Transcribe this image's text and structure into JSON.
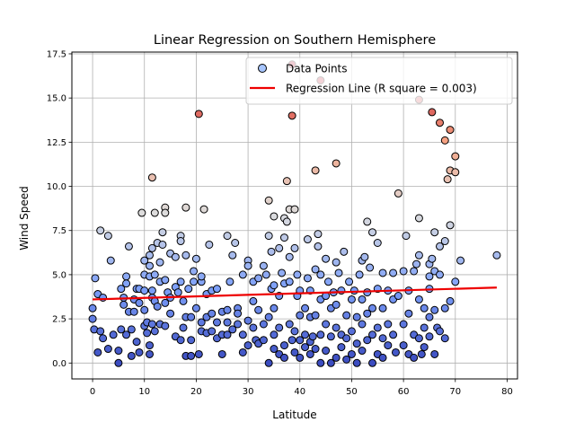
{
  "chart_data": {
    "type": "scatter",
    "title": "Linear Regression on Southern Hemisphere",
    "xlabel": "Latitude",
    "ylabel": "Wind Speed",
    "xlim": [
      -4,
      82
    ],
    "ylim": [
      -0.9,
      17.6
    ],
    "xticks": [
      "0",
      "10",
      "20",
      "30",
      "40",
      "50",
      "60",
      "70",
      "80"
    ],
    "yticks": [
      "0.0",
      "2.5",
      "5.0",
      "7.5",
      "10.0",
      "12.5",
      "15.0",
      "17.5"
    ],
    "grid": true,
    "legend": {
      "placement": "top-right",
      "entries": [
        "Data Points",
        "Regression Line (R square = 0.003)"
      ]
    },
    "colormap": "coolwarm",
    "colors": {
      "line": "#ee0000",
      "marker_edge": "#000000",
      "grid": "#b0b0b0"
    },
    "regression": {
      "x": [
        0,
        78
      ],
      "y": [
        3.6,
        4.27
      ]
    },
    "series": [
      {
        "name": "Data Points",
        "points": [
          [
            0,
            3.1
          ],
          [
            0,
            2.5
          ],
          [
            0.3,
            1.9
          ],
          [
            0.5,
            4.8
          ],
          [
            1,
            3.9
          ],
          [
            1,
            0.6
          ],
          [
            1.5,
            7.5
          ],
          [
            1.5,
            1.8
          ],
          [
            2,
            1.4
          ],
          [
            2,
            3.7
          ],
          [
            3,
            7.2
          ],
          [
            3,
            0.8
          ],
          [
            3.5,
            5.8
          ],
          [
            4,
            1.6
          ],
          [
            5,
            0
          ],
          [
            5,
            0.7
          ],
          [
            5.5,
            4.2
          ],
          [
            5.5,
            1.9
          ],
          [
            6,
            3.7
          ],
          [
            6,
            3.3
          ],
          [
            6.5,
            4.9
          ],
          [
            6.5,
            4.5
          ],
          [
            6.5,
            1.6
          ],
          [
            7,
            2.9
          ],
          [
            7,
            6.6
          ],
          [
            7.5,
            0.4
          ],
          [
            7.5,
            1.9
          ],
          [
            8,
            2.9
          ],
          [
            8,
            3.6
          ],
          [
            8.5,
            1.2
          ],
          [
            8.5,
            4.2
          ],
          [
            9,
            3.4
          ],
          [
            9,
            0.6
          ],
          [
            9,
            4.2
          ],
          [
            9.5,
            8.5
          ],
          [
            10,
            2.1
          ],
          [
            10,
            4.1
          ],
          [
            10,
            5.0
          ],
          [
            10,
            5.8
          ],
          [
            10,
            3.0
          ],
          [
            10.5,
            1.7
          ],
          [
            10.5,
            2.3
          ],
          [
            11,
            4.9
          ],
          [
            11,
            5.5
          ],
          [
            11,
            6.1
          ],
          [
            11,
            1.0
          ],
          [
            11,
            0.5
          ],
          [
            11.5,
            10.5
          ],
          [
            11.5,
            6.5
          ],
          [
            11.5,
            4.1
          ],
          [
            11.5,
            3.7
          ],
          [
            11.5,
            2.2
          ],
          [
            12,
            5.0
          ],
          [
            12,
            3.5
          ],
          [
            12,
            1.8
          ],
          [
            12,
            8.5
          ],
          [
            12.5,
            6.8
          ],
          [
            12.5,
            3.2
          ],
          [
            13,
            2.2
          ],
          [
            13,
            4.6
          ],
          [
            13,
            5.7
          ],
          [
            13.5,
            7.4
          ],
          [
            13.5,
            6.7
          ],
          [
            14,
            8.8
          ],
          [
            14,
            2.1
          ],
          [
            14,
            4.7
          ],
          [
            14,
            3.4
          ],
          [
            14,
            8.5
          ],
          [
            14.5,
            4.0
          ],
          [
            15,
            6.2
          ],
          [
            15,
            2.8
          ],
          [
            15,
            3.7
          ],
          [
            16,
            1.5
          ],
          [
            16,
            4.3
          ],
          [
            16,
            6.0
          ],
          [
            16.5,
            4.0
          ],
          [
            17,
            7.2
          ],
          [
            17,
            6.9
          ],
          [
            17,
            4.6
          ],
          [
            17,
            1.3
          ],
          [
            17.5,
            3.5
          ],
          [
            17.5,
            2.0
          ],
          [
            18,
            8.8
          ],
          [
            18,
            6.1
          ],
          [
            18,
            2.6
          ],
          [
            18,
            0.4
          ],
          [
            18.5,
            4.2
          ],
          [
            19,
            2.6
          ],
          [
            19,
            1.3
          ],
          [
            19,
            0.4
          ],
          [
            19.5,
            4.6
          ],
          [
            19.5,
            5.2
          ],
          [
            20,
            5.9
          ],
          [
            20,
            3.1
          ],
          [
            20.5,
            14.1
          ],
          [
            20.5,
            0.5
          ],
          [
            21,
            4.6
          ],
          [
            21,
            4.9
          ],
          [
            21,
            2.3
          ],
          [
            21,
            1.8
          ],
          [
            21.5,
            8.7
          ],
          [
            22,
            3.9
          ],
          [
            22,
            1.7
          ],
          [
            22,
            2.6
          ],
          [
            22.5,
            6.7
          ],
          [
            23,
            4.1
          ],
          [
            23,
            1.8
          ],
          [
            23,
            2.8
          ],
          [
            24,
            1.4
          ],
          [
            24,
            2.3
          ],
          [
            24,
            4.2
          ],
          [
            25,
            2.9
          ],
          [
            25,
            1.6
          ],
          [
            25,
            0.5
          ],
          [
            26,
            7.2
          ],
          [
            26,
            3.0
          ],
          [
            26,
            1.6
          ],
          [
            26,
            2.3
          ],
          [
            26.5,
            4.6
          ],
          [
            27,
            6.1
          ],
          [
            27,
            1.9
          ],
          [
            27.5,
            6.8
          ],
          [
            28,
            2.2
          ],
          [
            28,
            3.1
          ],
          [
            28,
            2.8
          ],
          [
            29,
            5.0
          ],
          [
            29,
            0.6
          ],
          [
            29,
            1.6
          ],
          [
            30,
            5.8
          ],
          [
            30,
            2.4
          ],
          [
            30,
            1.0
          ],
          [
            30,
            5.5
          ],
          [
            31,
            4.6
          ],
          [
            31,
            3.5
          ],
          [
            31,
            2.0
          ],
          [
            31.5,
            1.3
          ],
          [
            32,
            3.0
          ],
          [
            32,
            4.8
          ],
          [
            32,
            1.1
          ],
          [
            33,
            5.5
          ],
          [
            33,
            2.2
          ],
          [
            33,
            1.3
          ],
          [
            33.5,
            5.0
          ],
          [
            34,
            7.2
          ],
          [
            34,
            9.2
          ],
          [
            34,
            2.6
          ],
          [
            34,
            0.0
          ],
          [
            34.5,
            6.3
          ],
          [
            34.5,
            4.2
          ],
          [
            35,
            8.3
          ],
          [
            35,
            4.4
          ],
          [
            35,
            3.1
          ],
          [
            35,
            1.6
          ],
          [
            35,
            0.8
          ],
          [
            36,
            6.5
          ],
          [
            36,
            3.8
          ],
          [
            36,
            2.0
          ],
          [
            36,
            0.5
          ],
          [
            36.5,
            5.1
          ],
          [
            37,
            8.2
          ],
          [
            37,
            7.1
          ],
          [
            37,
            4.5
          ],
          [
            37,
            0.3
          ],
          [
            37,
            1.0
          ],
          [
            37.5,
            10.3
          ],
          [
            37.5,
            8.0
          ],
          [
            38,
            8.7
          ],
          [
            38,
            6.0
          ],
          [
            38,
            4.6
          ],
          [
            38,
            2.2
          ],
          [
            38.5,
            16.9
          ],
          [
            38.5,
            14.0
          ],
          [
            38.5,
            1.3
          ],
          [
            39,
            8.7
          ],
          [
            39,
            6.5
          ],
          [
            39,
            0.6
          ],
          [
            39,
            1.8
          ],
          [
            39.5,
            5.0
          ],
          [
            39.5,
            3.8
          ],
          [
            40,
            4.1
          ],
          [
            40,
            2.7
          ],
          [
            40,
            0.3
          ],
          [
            40,
            1.3
          ],
          [
            41,
            3.1
          ],
          [
            41,
            0.9
          ],
          [
            41,
            1.6
          ],
          [
            41.5,
            7.0
          ],
          [
            41.5,
            4.8
          ],
          [
            42,
            4.1
          ],
          [
            42,
            2.6
          ],
          [
            42,
            1.2
          ],
          [
            42,
            0.5
          ],
          [
            42.5,
            1.5
          ],
          [
            43,
            10.9
          ],
          [
            43,
            5.3
          ],
          [
            43,
            2.7
          ],
          [
            43,
            0.8
          ],
          [
            43.5,
            7.3
          ],
          [
            43.5,
            6.6
          ],
          [
            44,
            16.0
          ],
          [
            44,
            5.0
          ],
          [
            44,
            3.6
          ],
          [
            44,
            1.6
          ],
          [
            44,
            0.0
          ],
          [
            45,
            5.9
          ],
          [
            45,
            3.8
          ],
          [
            45,
            2.2
          ],
          [
            45,
            0.7
          ],
          [
            45.5,
            4.6
          ],
          [
            46,
            3.1
          ],
          [
            46,
            1.5
          ],
          [
            46,
            0.0
          ],
          [
            46.5,
            4.0
          ],
          [
            47,
            11.3
          ],
          [
            47,
            5.7
          ],
          [
            47,
            3.3
          ],
          [
            47,
            2.0
          ],
          [
            47,
            0.3
          ],
          [
            47.5,
            5.1
          ],
          [
            48,
            4.1
          ],
          [
            48,
            1.6
          ],
          [
            48,
            0.9
          ],
          [
            48.5,
            6.3
          ],
          [
            49,
            2.7
          ],
          [
            49,
            0.2
          ],
          [
            49,
            1.4
          ],
          [
            49.5,
            4.6
          ],
          [
            50,
            3.6
          ],
          [
            50,
            1.8
          ],
          [
            50,
            0.5
          ],
          [
            50.5,
            4.1
          ],
          [
            51,
            2.6
          ],
          [
            51,
            1.1
          ],
          [
            51,
            0.0
          ],
          [
            51.5,
            5.0
          ],
          [
            52,
            5.8
          ],
          [
            52,
            3.6
          ],
          [
            52,
            2.2
          ],
          [
            52,
            0.7
          ],
          [
            52.5,
            6.0
          ],
          [
            53,
            8.0
          ],
          [
            53,
            4.0
          ],
          [
            53,
            2.8
          ],
          [
            53,
            1.3
          ],
          [
            53.5,
            5.4
          ],
          [
            54,
            7.4
          ],
          [
            54,
            3.1
          ],
          [
            54,
            1.6
          ],
          [
            54,
            0.0
          ],
          [
            55,
            6.8
          ],
          [
            55,
            4.2
          ],
          [
            55,
            2.0
          ],
          [
            55,
            0.5
          ],
          [
            56,
            5.1
          ],
          [
            56,
            3.1
          ],
          [
            56,
            1.4
          ],
          [
            56,
            0.3
          ],
          [
            57,
            4.1
          ],
          [
            57,
            2.2
          ],
          [
            57,
            1.0
          ],
          [
            58,
            5.1
          ],
          [
            58,
            3.6
          ],
          [
            58,
            1.6
          ],
          [
            58.5,
            0.6
          ],
          [
            59,
            9.6
          ],
          [
            59,
            3.8
          ],
          [
            60,
            5.2
          ],
          [
            60,
            2.2
          ],
          [
            60,
            1.0
          ],
          [
            60.5,
            7.2
          ],
          [
            61,
            4.1
          ],
          [
            61,
            2.8
          ],
          [
            61,
            0.5
          ],
          [
            62,
            5.2
          ],
          [
            62,
            1.6
          ],
          [
            62,
            0.3
          ],
          [
            62.5,
            5.6
          ],
          [
            63,
            14.9
          ],
          [
            63,
            8.2
          ],
          [
            63,
            6.1
          ],
          [
            63,
            3.6
          ],
          [
            63,
            1.4
          ],
          [
            63.5,
            0.5
          ],
          [
            64,
            3.1
          ],
          [
            64,
            2.0
          ],
          [
            64,
            0.9
          ],
          [
            65,
            5.6
          ],
          [
            65,
            4.9
          ],
          [
            65,
            4.2
          ],
          [
            65,
            2.6
          ],
          [
            65,
            1.5
          ],
          [
            65.5,
            14.2
          ],
          [
            65.5,
            5.9
          ],
          [
            66,
            7.4
          ],
          [
            66,
            5.2
          ],
          [
            66,
            3.0
          ],
          [
            66,
            0.5
          ],
          [
            66.5,
            2.0
          ],
          [
            67,
            13.6
          ],
          [
            67,
            6.6
          ],
          [
            67,
            5.0
          ],
          [
            67,
            1.8
          ],
          [
            68,
            12.6
          ],
          [
            68,
            6.9
          ],
          [
            68,
            3.1
          ],
          [
            68,
            1.4
          ],
          [
            68.5,
            10.4
          ],
          [
            69,
            13.2
          ],
          [
            69,
            10.9
          ],
          [
            69,
            7.8
          ],
          [
            69,
            3.5
          ],
          [
            70,
            10.8
          ],
          [
            70,
            11.7
          ],
          [
            70,
            4.6
          ],
          [
            71,
            5.8
          ],
          [
            78,
            6.1
          ]
        ]
      }
    ]
  }
}
